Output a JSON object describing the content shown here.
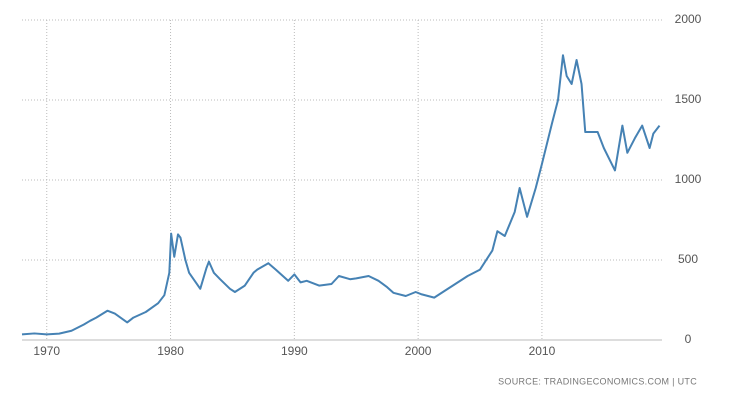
{
  "chart_data": {
    "type": "line",
    "source": "SOURCE: TRADINGECONOMICS.COM | UTC",
    "color": "#4682b4",
    "grid": true,
    "xlim": [
      1968,
      2019.7
    ],
    "xticks": [
      1970,
      1980,
      1990,
      2000,
      2010
    ],
    "ylim": [
      0,
      2000
    ],
    "yticks": [
      0,
      500,
      1000,
      1500,
      2000
    ],
    "x": [
      1968,
      1969,
      1970,
      1971,
      1972,
      1973,
      1973.5,
      1974,
      1974.9,
      1975.5,
      1976.5,
      1977,
      1978,
      1979,
      1979.5,
      1979.9,
      1980.05,
      1980.3,
      1980.6,
      1980.8,
      1981.2,
      1981.5,
      1982.4,
      1982.9,
      1983.1,
      1983.5,
      1984,
      1984.8,
      1985.2,
      1986,
      1986.7,
      1987,
      1987.9,
      1988.5,
      1989.5,
      1990,
      1990.5,
      1991,
      1992,
      1993,
      1993.6,
      1994.5,
      1995,
      1996,
      1996.8,
      1997.5,
      1998,
      1999,
      1999.8,
      2000.3,
      2001.3,
      2002,
      2003,
      2004,
      2005,
      2006,
      2006.4,
      2007,
      2007.8,
      2008.2,
      2008.8,
      2009.5,
      2010,
      2010.8,
      2011.3,
      2011.7,
      2012,
      2012.4,
      2012.8,
      2013.2,
      2013.5,
      2014,
      2014.5,
      2015,
      2015.9,
      2016.5,
      2016.9,
      2017.5,
      2018.1,
      2018.7,
      2019,
      2019.5
    ],
    "values": [
      35,
      41,
      35,
      40,
      58,
      97,
      120,
      140,
      183,
      165,
      110,
      140,
      175,
      230,
      280,
      420,
      665,
      520,
      660,
      640,
      500,
      420,
      320,
      450,
      490,
      420,
      380,
      320,
      300,
      340,
      420,
      440,
      480,
      440,
      370,
      410,
      360,
      370,
      340,
      350,
      400,
      380,
      385,
      400,
      370,
      330,
      295,
      275,
      300,
      285,
      265,
      300,
      350,
      400,
      440,
      560,
      680,
      650,
      800,
      950,
      770,
      950,
      1100,
      1350,
      1500,
      1780,
      1650,
      1600,
      1750,
      1600,
      1300,
      1300,
      1300,
      1200,
      1060,
      1340,
      1170,
      1260,
      1340,
      1200,
      1290,
      1340
    ]
  }
}
